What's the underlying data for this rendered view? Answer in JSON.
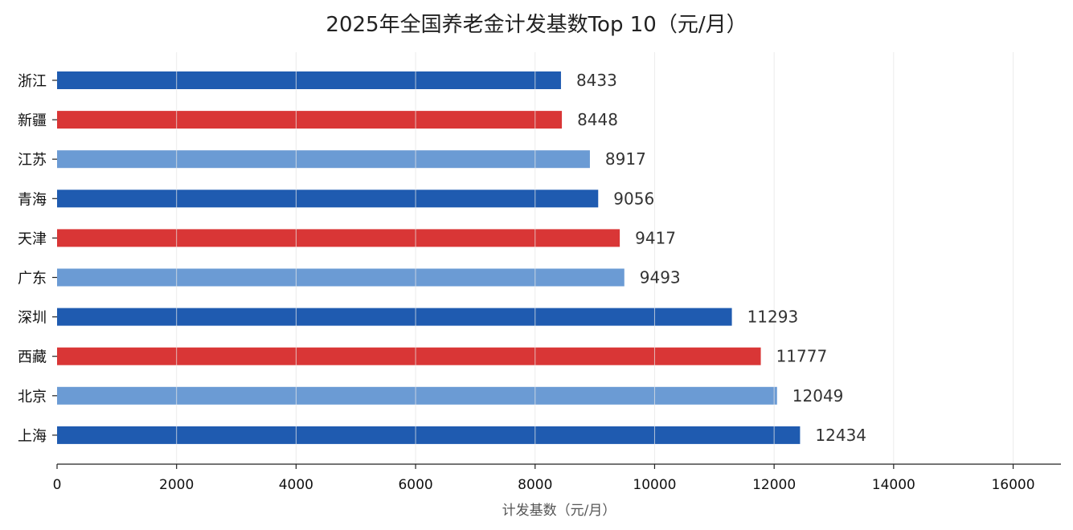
{
  "chart_data": {
    "type": "bar",
    "orientation": "horizontal",
    "title": "2025年全国养老金计发基数Top 10（元/月）",
    "xlabel": "计发基数（元/月）",
    "ylabel": "",
    "xlim": [
      0,
      16800
    ],
    "xticks": [
      0,
      2000,
      4000,
      6000,
      8000,
      10000,
      12000,
      14000,
      16000
    ],
    "grid": "vertical",
    "categories": [
      "浙江",
      "新疆",
      "江苏",
      "青海",
      "天津",
      "广东",
      "深圳",
      "西藏",
      "北京",
      "上海"
    ],
    "values": [
      8433,
      8448,
      8917,
      9056,
      9417,
      9493,
      11293,
      11777,
      12049,
      12434
    ],
    "data_labels": [
      "8433",
      "8448",
      "8917",
      "9056",
      "9417",
      "9493",
      "11293",
      "11777",
      "12049",
      "12434"
    ],
    "bar_colors": [
      "#1f5bb0",
      "#d93636",
      "#6b9bd4",
      "#1f5bb0",
      "#d93636",
      "#6b9bd4",
      "#1f5bb0",
      "#d93636",
      "#6b9bd4",
      "#1f5bb0"
    ]
  }
}
